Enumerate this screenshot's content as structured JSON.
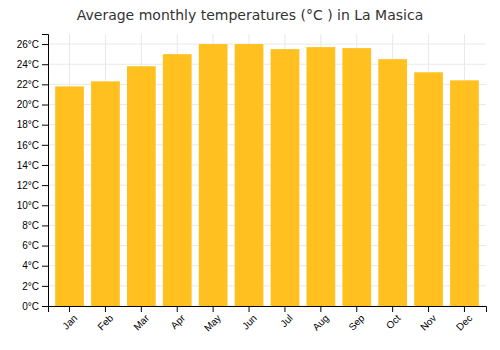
{
  "chart_data": {
    "type": "bar",
    "title": "Average monthly temperatures (°C ) in La Masica",
    "categories": [
      "Jan",
      "Feb",
      "Mar",
      "Apr",
      "May",
      "Jun",
      "Jul",
      "Aug",
      "Sep",
      "Oct",
      "Nov",
      "Dec"
    ],
    "values": [
      21.8,
      22.3,
      23.8,
      25.0,
      26.0,
      26.0,
      25.5,
      25.7,
      25.6,
      24.5,
      23.2,
      22.4
    ],
    "color": "#FFC020",
    "ylim": [
      0,
      27
    ],
    "yticks": [
      {
        "value": 0,
        "label": "0°C"
      },
      {
        "value": 2,
        "label": "2°C"
      },
      {
        "value": 4,
        "label": "4°C"
      },
      {
        "value": 6,
        "label": "6°C"
      },
      {
        "value": 8,
        "label": "8°C"
      },
      {
        "value": 10,
        "label": "10°C"
      },
      {
        "value": 12,
        "label": "12°C"
      },
      {
        "value": 14,
        "label": "14°C"
      },
      {
        "value": 16,
        "label": "16°C"
      },
      {
        "value": 18,
        "label": "18°C"
      },
      {
        "value": 20,
        "label": "20°C"
      },
      {
        "value": 22,
        "label": "22°C"
      },
      {
        "value": 24,
        "label": "24°C"
      },
      {
        "value": 26,
        "label": "26°C"
      }
    ],
    "grid": true
  }
}
